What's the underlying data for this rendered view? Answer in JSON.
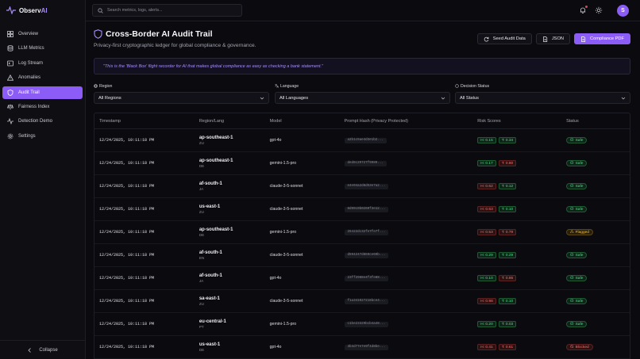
{
  "brand": {
    "name_main": "Observ",
    "name_accent": "AI"
  },
  "sidebar": {
    "items": [
      {
        "label": "Overview",
        "icon": "grid-icon"
      },
      {
        "label": "LLM Metrics",
        "icon": "database-icon"
      },
      {
        "label": "Log Stream",
        "icon": "terminal-icon"
      },
      {
        "label": "Anomalies",
        "icon": "alert-triangle-icon"
      },
      {
        "label": "Audit Trail",
        "icon": "shield-icon",
        "active": true
      },
      {
        "label": "Fairness Index",
        "icon": "scale-icon"
      },
      {
        "label": "Detection Demo",
        "icon": "pulse-icon"
      },
      {
        "label": "Settings",
        "icon": "gear-icon"
      }
    ],
    "collapse_label": "Collapse"
  },
  "topbar": {
    "search_placeholder": "Search metrics, logs, alerts...",
    "avatar_initial": "S"
  },
  "page": {
    "title": "Cross-Border AI Audit Trail",
    "subtitle": "Privacy-first cryptographic ledger for global compliance & governance.",
    "actions": {
      "seed": "Seed Audit Data",
      "json": "JSON",
      "pdf": "Compliance PDF"
    },
    "quote": "\"This is the 'Black Box' flight recorder for AI that makes global compliance as easy as checking a bank statement.\""
  },
  "filters": {
    "region": {
      "label": "Region",
      "value": "All Regions"
    },
    "language": {
      "label": "Language",
      "value": "All Languages"
    },
    "decision": {
      "label": "Decision Status",
      "value": "All Status"
    }
  },
  "table": {
    "headers": {
      "timestamp": "Timestamp",
      "region": "Region/Lang",
      "model": "Model",
      "hash": "Prompt Hash (Privacy Protected)",
      "risk": "Risk Scores",
      "status": "Status"
    },
    "rows": [
      {
        "ts": "12/24/2025, 10:11:18 PM",
        "region": "ap-southeast-1",
        "lang": "ZU",
        "model": "gpt-4o",
        "hash": "a2b1c5ae4d3e1b2...",
        "h": "H: 0.15",
        "hc": "green",
        "t": "T: 0.34",
        "tc": "green",
        "status": "Safe",
        "sc": "safe"
      },
      {
        "ts": "12/24/2025, 10:11:18 PM",
        "region": "ap-southeast-1",
        "lang": "DE",
        "model": "gemini-1.5-pro",
        "hash": "ded8c29727f9989...",
        "h": "H: 0.17",
        "hc": "green",
        "t": "T: 0.80",
        "tc": "red",
        "status": "Safe",
        "sc": "safe"
      },
      {
        "ts": "12/24/2025, 10:11:18 PM",
        "region": "af-south-1",
        "lang": "JA",
        "model": "claude-3-5-sonnet",
        "hash": "e4e04a2d8d53e7a2...",
        "h": "H: 0.62",
        "hc": "red",
        "t": "T: 0.12",
        "tc": "green",
        "status": "Safe",
        "sc": "safe"
      },
      {
        "ts": "12/24/2025, 10:11:18 PM",
        "region": "us-east-1",
        "lang": "ZU",
        "model": "claude-3-5-sonnet",
        "hash": "8d99c0b0260f3e12...",
        "h": "H: 0.63",
        "hc": "red",
        "t": "T: 0.10",
        "tc": "green",
        "status": "Safe",
        "sc": "safe"
      },
      {
        "ts": "12/24/2025, 10:11:18 PM",
        "region": "ap-southeast-1",
        "lang": "DE",
        "model": "gemini-1.5-pro",
        "hash": "25422dc32fe7fe7f...",
        "h": "H: 0.53",
        "hc": "red",
        "t": "T: 0.79",
        "tc": "red",
        "status": "Flagged",
        "sc": "flagged"
      },
      {
        "ts": "12/24/2025, 10:11:18 PM",
        "region": "af-south-1",
        "lang": "EN",
        "model": "claude-3-5-sonnet",
        "hash": "d594247d869ce69b...",
        "h": "H: 0.29",
        "hc": "green",
        "t": "T: 0.29",
        "tc": "green",
        "status": "Safe",
        "sc": "safe"
      },
      {
        "ts": "12/24/2025, 10:11:18 PM",
        "region": "af-south-1",
        "lang": "JA",
        "model": "gpt-4o",
        "hash": "23ff2988e4f3fe88...",
        "h": "H: 0.10",
        "hc": "green",
        "t": "T: 0.86",
        "tc": "red",
        "status": "Safe",
        "sc": "safe"
      },
      {
        "ts": "12/24/2025, 10:11:18 PM",
        "region": "sa-east-1",
        "lang": "ZU",
        "model": "claude-3-5-sonnet",
        "hash": "f1a341027218bce4...",
        "h": "H: 0.98",
        "hc": "red",
        "t": "T: 0.10",
        "tc": "green",
        "status": "Safe",
        "sc": "safe"
      },
      {
        "ts": "12/24/2025, 10:11:18 PM",
        "region": "eu-central-1",
        "lang": "PT",
        "model": "gemini-1.5-pro",
        "hash": "c1be23329bcb4a48...",
        "h": "H: 0.20",
        "hc": "green",
        "t": "T: 0.03",
        "tc": "green",
        "status": "Safe",
        "sc": "safe"
      },
      {
        "ts": "12/24/2025, 10:11:18 PM",
        "region": "us-east-1",
        "lang": "DE",
        "model": "gpt-4o",
        "hash": "3b3d77e7e9f4d8be...",
        "h": "H: 0.41",
        "hc": "red",
        "t": "T: 0.61",
        "tc": "red",
        "status": "Blocked",
        "sc": "blocked"
      }
    ]
  },
  "colors": {
    "accent": "#8b5cf6",
    "safe": "#4ade80",
    "risk": "#f87171",
    "warn": "#fbbf24"
  }
}
